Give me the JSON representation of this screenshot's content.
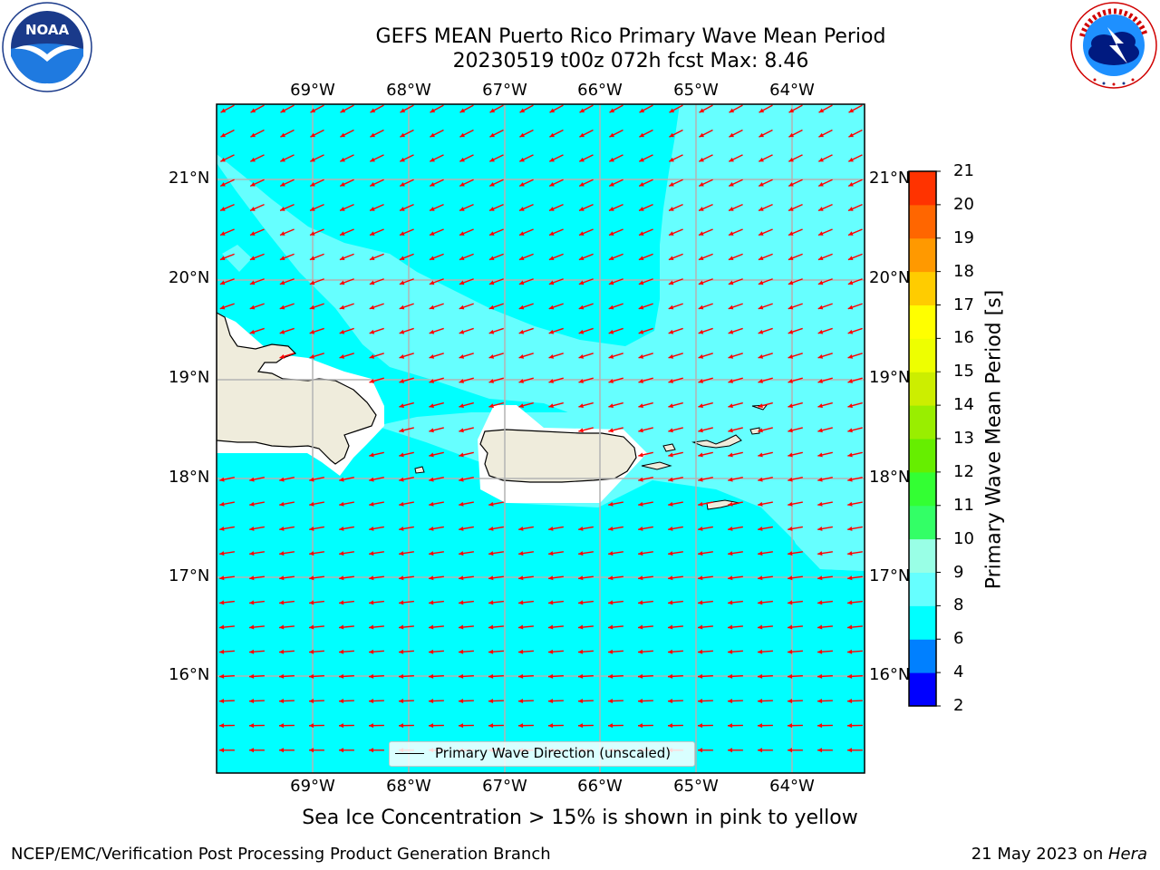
{
  "title_line1": "GEFS MEAN Puerto Rico Primary Wave Mean Period",
  "title_line2": "20230519 t00z 072h fcst   Max: 8.46",
  "lon_labels": [
    "69°W",
    "68°W",
    "67°W",
    "66°W",
    "65°W",
    "64°W"
  ],
  "lat_labels": [
    "21°N",
    "20°N",
    "19°N",
    "18°N",
    "17°N",
    "16°N"
  ],
  "legend_label": "Primary Wave Direction (unscaled)",
  "colorbar": {
    "title": "Primary Wave Mean Period [s]",
    "ticks": [
      "2",
      "4",
      "6",
      "8",
      "9",
      "10",
      "11",
      "12",
      "13",
      "14",
      "15",
      "16",
      "17",
      "18",
      "19",
      "20",
      "21"
    ],
    "colors": [
      "#0000ff",
      "#0080ff",
      "#00ffff",
      "#66ffff",
      "#99ffe6",
      "#33ff66",
      "#33ff33",
      "#66ee00",
      "#99ee00",
      "#ccee00",
      "#eeff00",
      "#ffff00",
      "#ffcc00",
      "#ff9900",
      "#ff6600",
      "#ff3300",
      "#ff0000"
    ]
  },
  "sea_ice_note": "Sea Ice Concentration > 15% is shown in pink to yellow",
  "footer_left": "NCEP/EMC/Verification Post Processing Product Generation Branch",
  "footer_date": "21 May 2023 on ",
  "footer_machine": "Hera",
  "colors": {
    "ocean_low": "#00ffff",
    "ocean_high": "#66ffff",
    "land": "#efecdc",
    "arrow": "#ff0000"
  }
}
